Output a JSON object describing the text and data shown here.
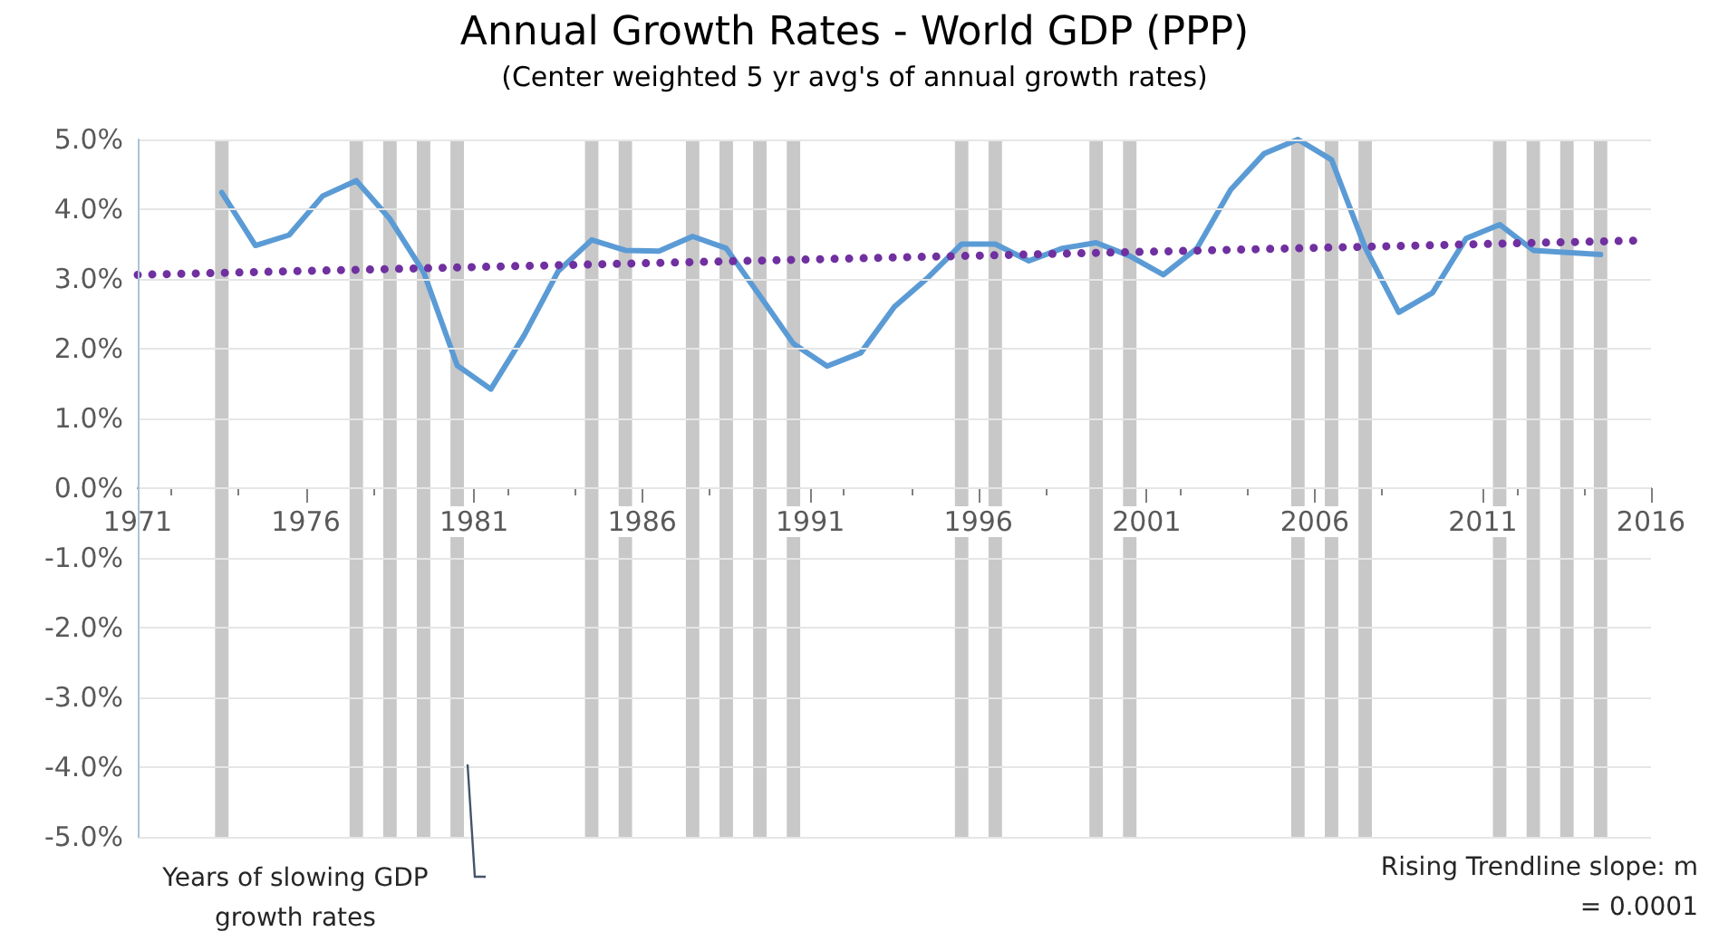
{
  "chart_data": {
    "type": "line",
    "title": "Annual Growth Rates - World GDP (PPP)",
    "subtitle": "(Center weighted 5 yr avg's of annual growth rates)",
    "series": [
      {
        "color": "#5b9bd5",
        "x": [
          1973.5,
          1974.5,
          1975.5,
          1976.5,
          1977.5,
          1978.5,
          1979.5,
          1980.5,
          1981.5,
          1982.5,
          1983.5,
          1984.5,
          1985.5,
          1986.5,
          1987.5,
          1988.5,
          1989.5,
          1990.5,
          1991.5,
          1992.5,
          1993.5,
          1994.5,
          1995.5,
          1996.5,
          1997.5,
          1998.5,
          1999.5,
          2000.5,
          2001.5,
          2002.5,
          2003.5,
          2004.5,
          2005.5,
          2006.5,
          2007.5,
          2008.5,
          2009.5,
          2010.5,
          2011.5,
          2012.5,
          2013.5,
          2014.5
        ],
        "values": [
          4.24,
          3.48,
          3.63,
          4.19,
          4.41,
          3.86,
          3.1,
          1.76,
          1.42,
          2.2,
          3.11,
          3.56,
          3.41,
          3.4,
          3.61,
          3.44,
          2.76,
          2.07,
          1.75,
          1.94,
          2.6,
          3.02,
          3.5,
          3.5,
          3.26,
          3.44,
          3.52,
          3.33,
          3.06,
          3.44,
          4.28,
          4.8,
          5.0,
          4.71,
          3.45,
          2.52,
          2.8,
          3.58,
          3.78,
          3.41,
          3.38,
          3.35
        ],
        "line_style": "solid"
      },
      {
        "color": "#7030a0",
        "x": [
          1971,
          2015.5
        ],
        "values": [
          3.06,
          3.55
        ],
        "line_style": "dotted"
      }
    ],
    "xlim": [
      1971,
      2016
    ],
    "xticks": [
      1971,
      1976,
      1981,
      1986,
      1991,
      1996,
      2001,
      2006,
      2011,
      2016
    ],
    "ylim": [
      -5,
      5
    ],
    "yticks": [
      {
        "value": -5,
        "label": "-5.0%"
      },
      {
        "value": -4,
        "label": "-4.0%"
      },
      {
        "value": -3,
        "label": "-3.0%"
      },
      {
        "value": -2,
        "label": "-2.0%"
      },
      {
        "value": -1,
        "label": "-1.0%"
      },
      {
        "value": 0,
        "label": "0.0%"
      },
      {
        "value": 1,
        "label": "1.0%"
      },
      {
        "value": 2,
        "label": "2.0%"
      },
      {
        "value": 3,
        "label": "3.0%"
      },
      {
        "value": 4,
        "label": "4.0%"
      },
      {
        "value": 5,
        "label": "5.0%"
      }
    ],
    "bands": [
      {
        "axis": "x",
        "from": 1973.3,
        "to": 1973.7,
        "color": "#c8c8c8"
      },
      {
        "axis": "x",
        "from": 1977.3,
        "to": 1977.7,
        "color": "#c8c8c8"
      },
      {
        "axis": "x",
        "from": 1978.3,
        "to": 1978.7,
        "color": "#c8c8c8"
      },
      {
        "axis": "x",
        "from": 1979.3,
        "to": 1979.7,
        "color": "#c8c8c8"
      },
      {
        "axis": "x",
        "from": 1980.3,
        "to": 1980.7,
        "color": "#c8c8c8"
      },
      {
        "axis": "x",
        "from": 1984.3,
        "to": 1984.7,
        "color": "#c8c8c8"
      },
      {
        "axis": "x",
        "from": 1985.3,
        "to": 1985.7,
        "color": "#c8c8c8"
      },
      {
        "axis": "x",
        "from": 1987.3,
        "to": 1987.7,
        "color": "#c8c8c8"
      },
      {
        "axis": "x",
        "from": 1988.3,
        "to": 1988.7,
        "color": "#c8c8c8"
      },
      {
        "axis": "x",
        "from": 1989.3,
        "to": 1989.7,
        "color": "#c8c8c8"
      },
      {
        "axis": "x",
        "from": 1990.3,
        "to": 1990.7,
        "color": "#c8c8c8"
      },
      {
        "axis": "x",
        "from": 1995.3,
        "to": 1995.7,
        "color": "#c8c8c8"
      },
      {
        "axis": "x",
        "from": 1996.3,
        "to": 1996.7,
        "color": "#c8c8c8"
      },
      {
        "axis": "x",
        "from": 1999.3,
        "to": 1999.7,
        "color": "#c8c8c8"
      },
      {
        "axis": "x",
        "from": 2000.3,
        "to": 2000.7,
        "color": "#c8c8c8"
      },
      {
        "axis": "x",
        "from": 2005.3,
        "to": 2005.7,
        "color": "#c8c8c8"
      },
      {
        "axis": "x",
        "from": 2006.3,
        "to": 2006.7,
        "color": "#c8c8c8"
      },
      {
        "axis": "x",
        "from": 2007.3,
        "to": 2007.7,
        "color": "#c8c8c8"
      },
      {
        "axis": "x",
        "from": 2011.3,
        "to": 2011.7,
        "color": "#c8c8c8"
      },
      {
        "axis": "x",
        "from": 2012.3,
        "to": 2012.7,
        "color": "#c8c8c8"
      },
      {
        "axis": "x",
        "from": 2013.3,
        "to": 2013.7,
        "color": "#c8c8c8"
      },
      {
        "axis": "x",
        "from": 2014.3,
        "to": 2014.7,
        "color": "#c8c8c8"
      }
    ],
    "annotations": [
      "Years of slowing GDP growth rates",
      "Rising Trendline slope: m = 0.0001"
    ],
    "grid": "y",
    "marker": "none"
  }
}
